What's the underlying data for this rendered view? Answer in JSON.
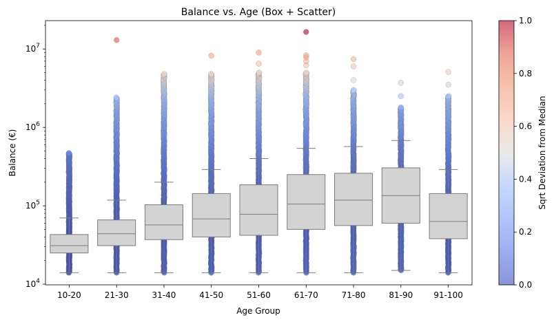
{
  "chart_data": {
    "type": "box",
    "title": "Balance vs. Age (Box + Scatter)",
    "xlabel": "Age Group",
    "ylabel": "Balance (€)",
    "yscale": "log",
    "ylim": [
      9800,
      23000000
    ],
    "y_ticks": [
      {
        "value": 10000,
        "base": "10",
        "exp": "4"
      },
      {
        "value": 100000,
        "base": "10",
        "exp": "5"
      },
      {
        "value": 1000000,
        "base": "10",
        "exp": "6"
      },
      {
        "value": 10000000,
        "base": "10",
        "exp": "7"
      }
    ],
    "categories": [
      "10-20",
      "21-30",
      "31-40",
      "41-50",
      "51-60",
      "61-70",
      "71-80",
      "81-90",
      "91-100"
    ],
    "boxes": [
      {
        "whisker_low": 14000,
        "q1": 25000,
        "median": 31000,
        "q3": 43000,
        "whisker_high": 70000,
        "points_max": 470000,
        "outliers": []
      },
      {
        "whisker_low": 14000,
        "q1": 31000,
        "median": 44000,
        "q3": 66000,
        "whisker_high": 118000,
        "points_max": 2400000,
        "outliers": [
          13000000
        ]
      },
      {
        "whisker_low": 14000,
        "q1": 37000,
        "median": 57000,
        "q3": 103000,
        "whisker_high": 200000,
        "points_max": 4800000,
        "outliers": []
      },
      {
        "whisker_low": 14000,
        "q1": 40000,
        "median": 68000,
        "q3": 143000,
        "whisker_high": 290000,
        "points_max": 4800000,
        "outliers": [
          8200000
        ]
      },
      {
        "whisker_low": 14000,
        "q1": 42000,
        "median": 78000,
        "q3": 185000,
        "whisker_high": 400000,
        "points_max": 5000000,
        "outliers": [
          6500000,
          9000000
        ]
      },
      {
        "whisker_low": 14000,
        "q1": 50000,
        "median": 105000,
        "q3": 250000,
        "whisker_high": 540000,
        "points_max": 5000000,
        "outliers": [
          6200000,
          7000000,
          7800000,
          8300000,
          16500000
        ]
      },
      {
        "whisker_low": 14000,
        "q1": 56000,
        "median": 118000,
        "q3": 260000,
        "whisker_high": 570000,
        "points_max": 3000000,
        "outliers": [
          4000000,
          6000000,
          7400000
        ]
      },
      {
        "whisker_low": 15000,
        "q1": 60000,
        "median": 135000,
        "q3": 305000,
        "whisker_high": 680000,
        "points_max": 1800000,
        "outliers": [
          2500000,
          3700000
        ]
      },
      {
        "whisker_low": 14000,
        "q1": 38000,
        "median": 63000,
        "q3": 143000,
        "whisker_high": 290000,
        "points_max": 2500000,
        "outliers": [
          3500000,
          5100000
        ]
      }
    ],
    "colorbar": {
      "label": "Sqrt Deviation from Median",
      "range": [
        0.0,
        1.0
      ],
      "ticks": [
        "0.0",
        "0.2",
        "0.4",
        "0.6",
        "0.8",
        "1.0"
      ],
      "colormap": "coolwarm"
    },
    "colors": {
      "box_fill": "#d3d3d3",
      "box_edge": "#7a7a7a",
      "cold": "#3b4cc0",
      "neutral": "#dddddd",
      "warm": "#b40426"
    },
    "grid": false,
    "legend": "none"
  }
}
